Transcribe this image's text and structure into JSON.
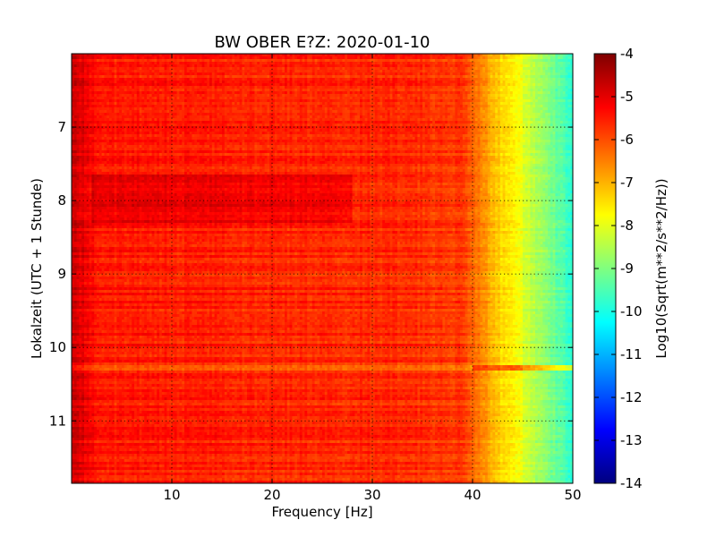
{
  "chart_data": {
    "type": "heatmap",
    "title": "BW OBER E?Z: 2020-01-10",
    "xlabel": "Frequency [Hz]",
    "ylabel": "Lokalzeit (UTC + 1 Stunde)",
    "colorbar_label": "Log10(Sqrt(m**2/s**2/Hz))",
    "xlim": [
      0,
      50
    ],
    "ylim": [
      11.85,
      6.0
    ],
    "x_ticks": [
      10,
      20,
      30,
      40,
      50
    ],
    "y_ticks": [
      7,
      8,
      9,
      10,
      11
    ],
    "colorbar_range": [
      -14,
      -4
    ],
    "colorbar_ticks": [
      -4,
      -5,
      -6,
      -7,
      -8,
      -9,
      -10,
      -11,
      -12,
      -13,
      -14
    ],
    "colormap": "jet",
    "grid": true,
    "grid_style": "dotted",
    "legend": "colorbar-right",
    "value_profile": {
      "frequency_hz": [
        0,
        1,
        3,
        10,
        20,
        30,
        39,
        41,
        43,
        45,
        47,
        49,
        50
      ],
      "log10_amplitude": [
        -4.6,
        -5.0,
        -5.5,
        -5.5,
        -5.6,
        -5.6,
        -5.8,
        -6.6,
        -7.4,
        -8.0,
        -8.7,
        -9.5,
        -9.8
      ]
    },
    "annotations": [
      {
        "time_hours": 10.28,
        "note": "strong broadband band reaching 50 Hz"
      },
      {
        "time_range_hours": [
          7.65,
          8.3
        ],
        "freq_range_hz": [
          2,
          28
        ],
        "note": "elevated energy"
      }
    ]
  }
}
